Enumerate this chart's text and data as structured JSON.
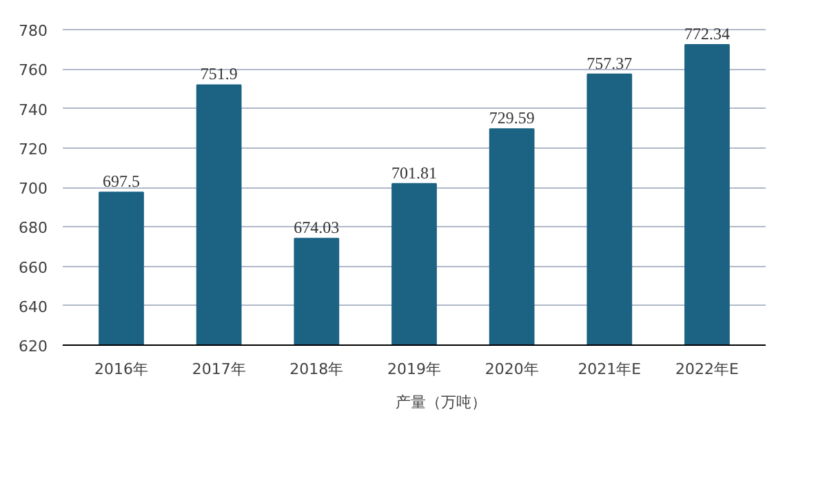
{
  "chart_data": {
    "type": "bar",
    "categories": [
      "2016年",
      "2017年",
      "2018年",
      "2019年",
      "2020年",
      "2021年E",
      "2022年E"
    ],
    "series": [
      {
        "name": "产量（万吨）",
        "color": "#1b6283",
        "values": [
          697.5,
          751.9,
          674.03,
          701.81,
          729.59,
          757.37,
          772.34
        ]
      }
    ],
    "ylim": [
      620,
      780
    ],
    "yticks": [
      620,
      640,
      660,
      680,
      700,
      720,
      740,
      760,
      780
    ],
    "grid": "y",
    "legend": "bottom",
    "data_labels": true
  }
}
